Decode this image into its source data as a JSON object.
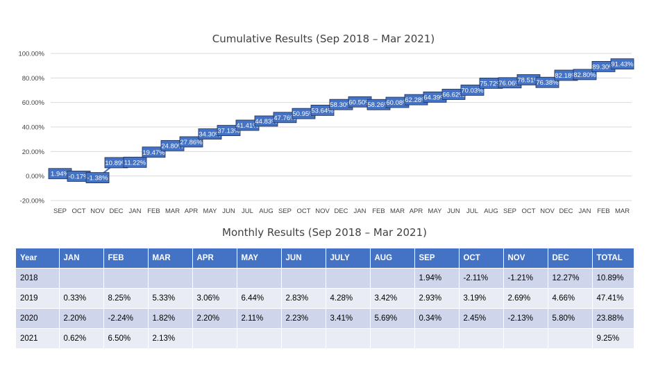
{
  "chart_data": {
    "type": "line",
    "title": "Cumulative Results (Sep 2018 – Mar 2021)",
    "categories": [
      "SEP",
      "OCT",
      "NOV",
      "DEC",
      "JAN",
      "FEB",
      "MAR",
      "APR",
      "MAY",
      "JUN",
      "JUL",
      "AUG",
      "SEP",
      "OCT",
      "NOV",
      "DEC",
      "JAN",
      "FEB",
      "MAR",
      "APR",
      "MAY",
      "JUN",
      "JUL",
      "AUG",
      "SEP",
      "OCT",
      "NOV",
      "DEC",
      "JAN",
      "FEB",
      "MAR"
    ],
    "y_ticks": [
      "100.00%",
      "80.00%",
      "60.00%",
      "40.00%",
      "20.00%",
      "0.00%",
      "-20.00%"
    ],
    "ylim": [
      -20,
      100
    ],
    "grid": true,
    "series": [
      {
        "values": [
          1.94,
          -0.17,
          -1.38,
          10.89,
          11.22,
          19.47,
          24.8,
          27.86,
          34.3,
          37.13,
          41.41,
          44.83,
          47.76,
          50.95,
          53.64,
          58.3,
          60.5,
          58.26,
          60.08,
          62.28,
          64.39,
          66.62,
          70.03,
          75.72,
          76.06,
          78.51,
          76.38,
          82.18,
          82.8,
          89.3,
          91.43
        ],
        "labels": [
          "1.94%",
          "-0.17%",
          "-1.38%",
          "10.89%",
          "11.22%",
          "19.47%",
          "24.80%",
          "27.86%",
          "34.30%",
          "37.13%",
          "41.41%",
          "44.83%",
          "47.76%",
          "50.95%",
          "53.64%",
          "58.30%",
          "60.50%",
          "58.26%",
          "60.08%",
          "62.28%",
          "64.39%",
          "66.62%",
          "70.03%",
          "75.72%",
          "76.06%",
          "78.51%",
          "76.38%",
          "82.18%",
          "82.80%",
          "89.30%",
          "91.43%"
        ],
        "color": "#4472c4"
      }
    ]
  },
  "table": {
    "title": "Monthly Results (Sep 2018 – Mar 2021)",
    "headers": [
      "Year",
      "JAN",
      "FEB",
      "MAR",
      "APR",
      "MAY",
      "JUN",
      "JULY",
      "AUG",
      "SEP",
      "OCT",
      "NOV",
      "DEC",
      "TOTAL"
    ],
    "rows": [
      [
        "2018",
        "",
        "",
        "",
        "",
        "",
        "",
        "",
        "",
        "1.94%",
        "-2.11%",
        "-1.21%",
        "12.27%",
        "10.89%"
      ],
      [
        "2019",
        "0.33%",
        "8.25%",
        "5.33%",
        "3.06%",
        "6.44%",
        "2.83%",
        "4.28%",
        "3.42%",
        "2.93%",
        "3.19%",
        "2.69%",
        "4.66%",
        "47.41%"
      ],
      [
        "2020",
        "2.20%",
        "-2.24%",
        "1.82%",
        "2.20%",
        "2.11%",
        "2.23%",
        "3.41%",
        "5.69%",
        "0.34%",
        "2.45%",
        "-2.13%",
        "5.80%",
        "23.88%"
      ],
      [
        "2021",
        "0.62%",
        "6.50%",
        "2.13%",
        "",
        "",
        "",
        "",
        "",
        "",
        "",
        "",
        "",
        "9.25%"
      ]
    ]
  },
  "colors": {
    "header_bg": "#4472c4",
    "row_dark": "#cfd5ea",
    "row_light": "#e9ebf5",
    "series": "#4472c4",
    "gridline": "#d9d9d9"
  }
}
